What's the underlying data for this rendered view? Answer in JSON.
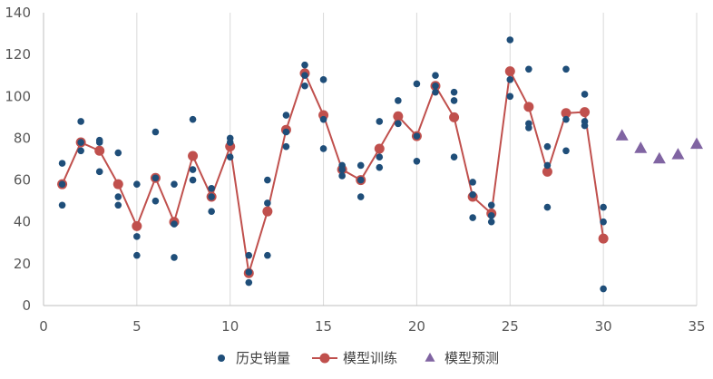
{
  "chart_data": {
    "type": "scatter",
    "title": "",
    "xlabel": "",
    "ylabel": "",
    "xlim": [
      0,
      35
    ],
    "ylim": [
      0,
      140
    ],
    "x_ticks": [
      0,
      5,
      10,
      15,
      20,
      25,
      30,
      35
    ],
    "y_ticks": [
      0,
      20,
      40,
      60,
      80,
      100,
      120,
      140
    ],
    "x_grid": true,
    "y_grid": false,
    "legend_position": "bottom",
    "series": [
      {
        "name": "历史销量",
        "mark": "dot",
        "color": "#1f4e79",
        "points": [
          [
            1,
            68
          ],
          [
            1,
            58
          ],
          [
            1,
            48
          ],
          [
            2,
            88
          ],
          [
            2,
            78
          ],
          [
            2,
            74
          ],
          [
            3,
            79
          ],
          [
            3,
            78
          ],
          [
            3,
            64
          ],
          [
            4,
            73
          ],
          [
            4,
            52
          ],
          [
            4,
            48
          ],
          [
            5,
            58
          ],
          [
            5,
            33
          ],
          [
            5,
            24
          ],
          [
            6,
            83
          ],
          [
            6,
            61
          ],
          [
            6,
            50
          ],
          [
            7,
            58
          ],
          [
            7,
            39
          ],
          [
            7,
            23
          ],
          [
            8,
            89
          ],
          [
            8,
            65
          ],
          [
            8,
            60
          ],
          [
            9,
            56
          ],
          [
            9,
            52
          ],
          [
            9,
            45
          ],
          [
            10,
            80
          ],
          [
            10,
            78
          ],
          [
            10,
            71
          ],
          [
            11,
            24
          ],
          [
            11,
            16
          ],
          [
            11,
            11
          ],
          [
            12,
            60
          ],
          [
            12,
            49
          ],
          [
            12,
            24
          ],
          [
            13,
            91
          ],
          [
            13,
            83
          ],
          [
            13,
            76
          ],
          [
            14,
            115
          ],
          [
            14,
            110
          ],
          [
            14,
            105
          ],
          [
            15,
            108
          ],
          [
            15,
            89
          ],
          [
            15,
            75
          ],
          [
            16,
            67
          ],
          [
            16,
            65
          ],
          [
            16,
            62
          ],
          [
            17,
            67
          ],
          [
            17,
            60
          ],
          [
            17,
            52
          ],
          [
            18,
            88
          ],
          [
            18,
            71
          ],
          [
            18,
            66
          ],
          [
            19,
            98
          ],
          [
            19,
            87
          ],
          [
            19,
            87
          ],
          [
            20,
            106
          ],
          [
            20,
            81
          ],
          [
            20,
            69
          ],
          [
            21,
            110
          ],
          [
            21,
            105
          ],
          [
            21,
            102
          ],
          [
            22,
            102
          ],
          [
            22,
            98
          ],
          [
            22,
            71
          ],
          [
            23,
            59
          ],
          [
            23,
            53
          ],
          [
            23,
            42
          ],
          [
            24,
            48
          ],
          [
            24,
            43
          ],
          [
            24,
            40
          ],
          [
            25,
            127
          ],
          [
            25,
            108
          ],
          [
            25,
            100
          ],
          [
            26,
            113
          ],
          [
            26,
            87
          ],
          [
            26,
            85
          ],
          [
            27,
            76
          ],
          [
            27,
            67
          ],
          [
            27,
            47
          ],
          [
            28,
            113
          ],
          [
            28,
            89
          ],
          [
            28,
            74
          ],
          [
            29,
            101
          ],
          [
            29,
            88
          ],
          [
            29,
            86
          ],
          [
            30,
            47
          ],
          [
            30,
            40
          ],
          [
            30,
            8
          ]
        ]
      },
      {
        "name": "模型训练",
        "mark": "line-circle",
        "color": "#c0504d",
        "points": [
          [
            1,
            58
          ],
          [
            2,
            78
          ],
          [
            3,
            74
          ],
          [
            4,
            58
          ],
          [
            5,
            38
          ],
          [
            6,
            61
          ],
          [
            7,
            40
          ],
          [
            8,
            71.5
          ],
          [
            9,
            52
          ],
          [
            10,
            76
          ],
          [
            11,
            15.5
          ],
          [
            12,
            45
          ],
          [
            13,
            84
          ],
          [
            14,
            111
          ],
          [
            15,
            91
          ],
          [
            16,
            65
          ],
          [
            17,
            60
          ],
          [
            18,
            75
          ],
          [
            19,
            90.5
          ],
          [
            20,
            81
          ],
          [
            21,
            105
          ],
          [
            22,
            90
          ],
          [
            23,
            52
          ],
          [
            24,
            44
          ],
          [
            25,
            112
          ],
          [
            26,
            95
          ],
          [
            27,
            64
          ],
          [
            28,
            92
          ],
          [
            29,
            92.5
          ],
          [
            30,
            32
          ]
        ]
      },
      {
        "name": "模型预测",
        "mark": "triangle",
        "color": "#8064a2",
        "points": [
          [
            31,
            81
          ],
          [
            32,
            75
          ],
          [
            33,
            70
          ],
          [
            34,
            72
          ],
          [
            35,
            77
          ]
        ]
      }
    ]
  }
}
